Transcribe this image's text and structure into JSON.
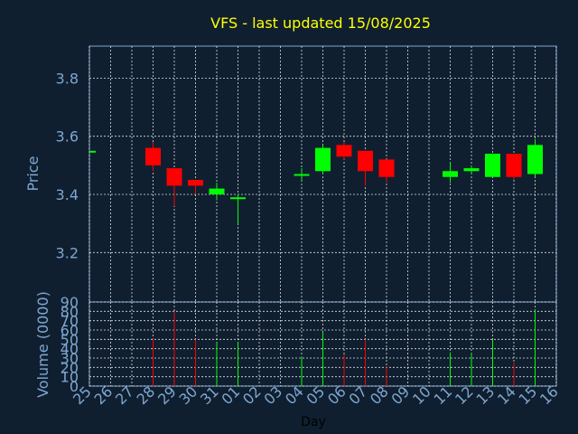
{
  "chart_data": [
    {
      "type": "candlestick",
      "title": "VFS - last updated 15/08/2025",
      "ylabel": "Price",
      "ylim": [
        3.03,
        3.91
      ],
      "yticks": [
        3.2,
        3.4,
        3.6,
        3.8
      ],
      "ytick_labels": [
        "3.2",
        "3.4",
        "3.6",
        "3.8"
      ],
      "grid": true,
      "candles": [
        {
          "day": "25",
          "open": 3.55,
          "close": 3.55,
          "high": 3.55,
          "low": 3.55
        },
        {
          "day": "28",
          "open": 3.56,
          "close": 3.5,
          "high": 3.58,
          "low": 3.48
        },
        {
          "day": "29",
          "open": 3.49,
          "close": 3.43,
          "high": 3.49,
          "low": 3.36
        },
        {
          "day": "30",
          "open": 3.45,
          "close": 3.43,
          "high": 3.45,
          "low": 3.4
        },
        {
          "day": "31",
          "open": 3.4,
          "close": 3.42,
          "high": 3.44,
          "low": 3.38
        },
        {
          "day": "01",
          "open": 3.39,
          "close": 3.39,
          "high": 3.4,
          "low": 3.3
        },
        {
          "day": "04",
          "open": 3.47,
          "close": 3.47,
          "high": 3.49,
          "low": 3.45
        },
        {
          "day": "05",
          "open": 3.48,
          "close": 3.56,
          "high": 3.57,
          "low": 3.47
        },
        {
          "day": "06",
          "open": 3.57,
          "close": 3.53,
          "high": 3.58,
          "low": 3.52
        },
        {
          "day": "07",
          "open": 3.55,
          "close": 3.48,
          "high": 3.55,
          "low": 3.43
        },
        {
          "day": "08",
          "open": 3.52,
          "close": 3.46,
          "high": 3.52,
          "low": 3.44
        },
        {
          "day": "11",
          "open": 3.46,
          "close": 3.48,
          "high": 3.51,
          "low": 3.44
        },
        {
          "day": "12",
          "open": 3.48,
          "close": 3.49,
          "high": 3.5,
          "low": 3.47
        },
        {
          "day": "13",
          "open": 3.46,
          "close": 3.54,
          "high": 3.54,
          "low": 3.46
        },
        {
          "day": "14",
          "open": 3.54,
          "close": 3.46,
          "high": 3.54,
          "low": 3.45
        },
        {
          "day": "15",
          "open": 3.47,
          "close": 3.57,
          "high": 3.59,
          "low": 3.46
        }
      ],
      "colors": {
        "up": "#00ff00",
        "down": "#ff0000",
        "flat": "#00ff00"
      }
    },
    {
      "type": "bar",
      "ylabel": "Volume (0000)",
      "xlabel": "Day",
      "ylim": [
        0,
        90
      ],
      "yticks": [
        0,
        10,
        20,
        30,
        40,
        50,
        60,
        70,
        80,
        90
      ],
      "ytick_labels": [
        "0",
        "10",
        "20",
        "30",
        "40",
        "50",
        "60",
        "70",
        "80",
        "90"
      ],
      "categories": [
        "25",
        "26",
        "27",
        "28",
        "29",
        "30",
        "31",
        "01",
        "02",
        "03",
        "04",
        "05",
        "06",
        "07",
        "08",
        "09",
        "10",
        "11",
        "12",
        "13",
        "14",
        "15",
        "16"
      ],
      "values": [
        0,
        0,
        0,
        51,
        80,
        50,
        47,
        47,
        0,
        0,
        32,
        58,
        34,
        50,
        21,
        0,
        0,
        36,
        35,
        50,
        25,
        82,
        0
      ],
      "bar_colors": [
        "",
        "",
        "",
        "#ff0000",
        "#ff0000",
        "#ff0000",
        "#00ff00",
        "#00ff00",
        "",
        "",
        "#00ff00",
        "#00ff00",
        "#ff0000",
        "#ff0000",
        "#ff0000",
        "",
        "",
        "#00ff00",
        "#00ff00",
        "#00ff00",
        "#ff0000",
        "#00ff00",
        ""
      ]
    }
  ]
}
